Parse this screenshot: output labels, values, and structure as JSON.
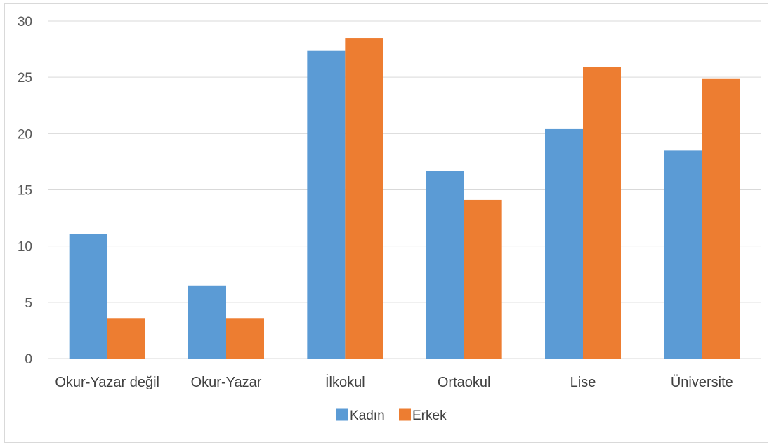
{
  "chart_data": {
    "type": "bar",
    "title": "",
    "xlabel": "",
    "ylabel": "",
    "categories": [
      "Okur-Yazar değil",
      "Okur-Yazar",
      "İlkokul",
      "Ortaokul",
      "Lise",
      "Üniversite"
    ],
    "series": [
      {
        "name": "Kadın",
        "color": "#5b9bd5",
        "values": [
          11.1,
          6.5,
          27.4,
          16.7,
          20.4,
          18.5
        ]
      },
      {
        "name": "Erkek",
        "color": "#ed7d31",
        "values": [
          3.6,
          3.6,
          28.5,
          14.1,
          25.9,
          24.9
        ]
      }
    ],
    "ylim": [
      0,
      30
    ],
    "yticks": [
      "0",
      "5",
      "10",
      "15",
      "20",
      "25",
      "30"
    ],
    "grid": true,
    "legend_position": "bottom"
  }
}
